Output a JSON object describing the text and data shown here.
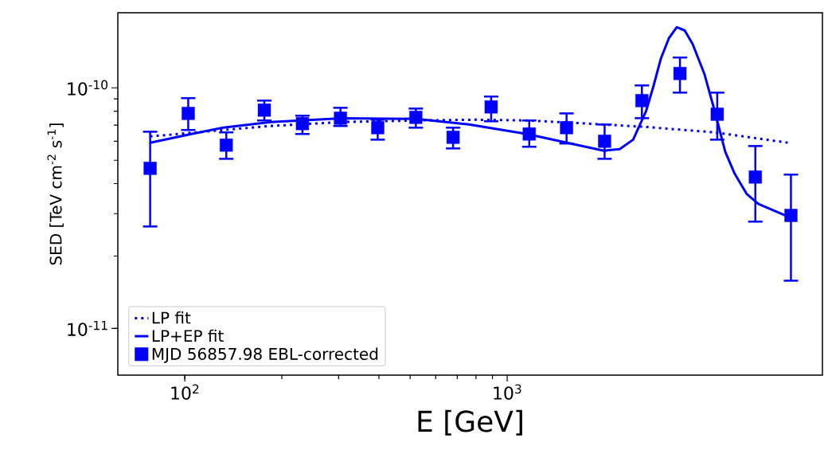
{
  "chart_data": {
    "type": "scatter",
    "xlabel": "E [GeV]",
    "ylabel": "SED [TeV cm$^{-2}$ s$^{-1}$]",
    "log": "xy",
    "legend": "bottom left",
    "grid": false,
    "xlim": [
      62,
      9500
    ],
    "ylim": [
      6.4e-12,
      2.05e-10
    ],
    "xticks": [
      {
        "value": 100,
        "label": "10$^{2}$"
      },
      {
        "value": 1000,
        "label": "10$^{3}$"
      }
    ],
    "yticks": [
      {
        "value": 1e-11,
        "label": "10$^{-11}$"
      },
      {
        "value": 1e-10,
        "label": "10$^{-10}$"
      }
    ],
    "series": [
      {
        "name": "LP fit",
        "type": "line",
        "line_style": "dotted",
        "marker": "none",
        "color": "#0000ff",
        "x": [
          78.1,
          131.5,
          184.7,
          307.5,
          520.8,
          805,
          1151,
          1617,
          2692,
          4407,
          7463
        ],
        "values": [
          6.28e-11,
          6.68e-11,
          6.94e-11,
          7.21e-11,
          7.32e-11,
          7.37e-11,
          7.32e-11,
          7.15e-11,
          6.88e-11,
          6.53e-11,
          5.91e-11
        ]
      },
      {
        "name": "LP+EP fit",
        "type": "line",
        "line_style": "solid",
        "marker": "none",
        "color": "#0000ff",
        "x": [
          78.1,
          104.8,
          131.5,
          184.7,
          307.5,
          520.8,
          761,
          1151,
          1994,
          2233,
          2458,
          2692,
          2833,
          2999,
          3172,
          3357,
          3553,
          3760,
          4093,
          4407,
          4745,
          5079,
          5527,
          6018,
          7548
        ],
        "values": [
          5.91e-11,
          6.43e-11,
          6.83e-11,
          7.21e-11,
          7.48e-11,
          7.43e-11,
          7.04e-11,
          6.43e-11,
          5.48e-11,
          5.56e-11,
          6.09e-11,
          7.96e-11,
          1e-10,
          1.326e-10,
          1.604e-10,
          1.785e-10,
          1.731e-10,
          1.521e-10,
          1.138e-10,
          7.96e-11,
          5.43e-11,
          4.39e-11,
          3.63e-11,
          3.29e-11,
          2.89e-11
        ]
      },
      {
        "name": "MJD 56857.98 EBL-corrected",
        "type": "scatter",
        "marker": "square",
        "color": "#0000ff",
        "x": [
          78.1,
          102.5,
          134.5,
          176.5,
          231.7,
          304,
          396.8,
          520.8,
          679.5,
          891.8,
          1170.6,
          1528,
          2005,
          2617,
          3435,
          4482,
          5884,
          7587
        ],
        "values": [
          4.63e-11,
          7.83e-11,
          5.78e-11,
          8.08e-11,
          7.1e-11,
          7.48e-11,
          6.83e-11,
          7.54e-11,
          6.23e-11,
          8.33e-11,
          6.43e-11,
          6.83e-11,
          6e-11,
          8.85e-11,
          1.147e-10,
          7.77e-11,
          4.26e-11,
          2.95e-11
        ],
        "errors": [
          [
            2.654e-11,
            6.57e-11
          ],
          [
            6.68e-11,
            9.06e-11
          ],
          [
            5.07e-11,
            6.53e-11
          ],
          [
            7.32e-11,
            8.85e-11
          ],
          [
            6.43e-11,
            7.66e-11
          ],
          [
            6.94e-11,
            8.26e-11
          ],
          [
            6.09e-11,
            7.37e-11
          ],
          [
            6.83e-11,
            8.2e-11
          ],
          [
            5.6e-11,
            6.83e-11
          ],
          [
            7.26e-11,
            9.2e-11
          ],
          [
            5.69e-11,
            7.32e-11
          ],
          [
            5.87e-11,
            7.83e-11
          ],
          [
            5.07e-11,
            7.04e-11
          ],
          [
            7.48e-11,
            1.023e-10
          ],
          [
            9.55e-11,
            1.336e-10
          ],
          [
            6.09e-11,
            9.55e-11
          ],
          [
            2.78e-11,
            5.73e-11
          ],
          [
            1.58e-11,
            4.36e-11
          ]
        ]
      }
    ]
  }
}
